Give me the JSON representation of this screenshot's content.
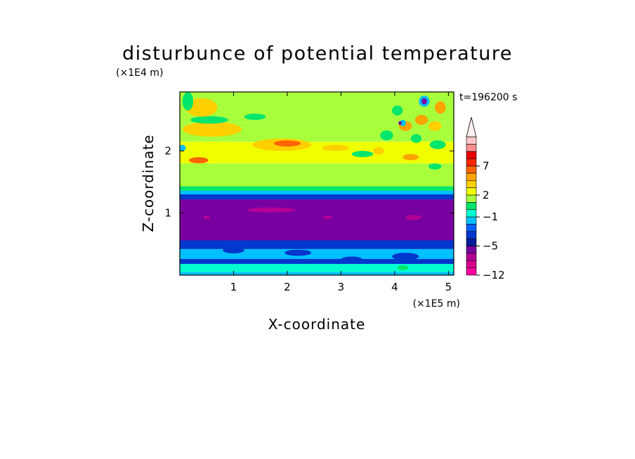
{
  "chart_data": {
    "type": "heatmap",
    "title": "disturbunce of potential temperature",
    "xlabel": "X-coordinate",
    "ylabel": "Z-coordinate",
    "x_unit_label": "(×1E5 m)",
    "y_unit_label": "(×1E4 m)",
    "time_label": "t=196200 s",
    "xlim": [
      0,
      5.1
    ],
    "ylim": [
      0,
      2.95
    ],
    "x_ticks": [
      1,
      2,
      3,
      4,
      5
    ],
    "y_ticks": [
      1,
      2
    ],
    "colorbar": {
      "levels": [
        -12,
        -11,
        -9,
        -7,
        -5,
        -4,
        -3,
        -2,
        -1,
        0,
        1,
        2,
        3,
        4,
        5,
        7,
        8,
        9,
        10
      ],
      "colors": [
        "#ff00a0",
        "#d8008c",
        "#b40096",
        "#7800a0",
        "#001e9a",
        "#0037cc",
        "#0060ff",
        "#00bfff",
        "#00ffd0",
        "#00e56b",
        "#a8ff3c",
        "#f0ff00",
        "#ffd000",
        "#ffa400",
        "#ff6400",
        "#ff2800",
        "#e60000",
        "#ff8f8f",
        "#ffc8c8"
      ],
      "extend_color": "#fff0f0",
      "tick_labels": [
        "7",
        "2",
        "-1",
        "-5",
        "-12"
      ],
      "tick_values": [
        7,
        2,
        -1,
        -5,
        -12
      ]
    },
    "field_bands": [
      {
        "z_from": 0.0,
        "z_to": 0.05,
        "value": -1.5
      },
      {
        "z_from": 0.05,
        "z_to": 0.18,
        "value": -0.6
      },
      {
        "z_from": 0.18,
        "z_to": 0.26,
        "value": -3.5
      },
      {
        "z_from": 0.26,
        "z_to": 0.42,
        "value": -1.4
      },
      {
        "z_from": 0.42,
        "z_to": 0.56,
        "value": -3.2
      },
      {
        "z_from": 0.56,
        "z_to": 1.22,
        "value": -5.5
      },
      {
        "z_from": 1.22,
        "z_to": 1.3,
        "value": -3.5
      },
      {
        "z_from": 1.3,
        "z_to": 1.36,
        "value": -1.5
      },
      {
        "z_from": 1.36,
        "z_to": 1.43,
        "value": 0.3
      },
      {
        "z_from": 1.43,
        "z_to": 1.8,
        "value": 1.6
      },
      {
        "z_from": 1.8,
        "z_to": 2.15,
        "value": 2.5
      },
      {
        "z_from": 2.15,
        "z_to": 2.45,
        "value": 1.7
      },
      {
        "z_from": 2.45,
        "z_to": 2.95,
        "value": 1.5
      }
    ],
    "field_features": [
      {
        "x": 1.7,
        "z": 1.05,
        "rx": 0.45,
        "rz": 0.04,
        "value": -9
      },
      {
        "x": 4.35,
        "z": 0.93,
        "rx": 0.15,
        "rz": 0.04,
        "value": -9
      },
      {
        "x": 2.75,
        "z": 0.93,
        "rx": 0.08,
        "rz": 0.03,
        "value": -9
      },
      {
        "x": 0.5,
        "z": 0.93,
        "rx": 0.06,
        "rz": 0.03,
        "value": -9
      },
      {
        "x": 1.9,
        "z": 2.1,
        "rx": 0.55,
        "rz": 0.1,
        "value": 3.2
      },
      {
        "x": 2.0,
        "z": 2.12,
        "rx": 0.25,
        "rz": 0.05,
        "value": 5.5
      },
      {
        "x": 0.6,
        "z": 2.35,
        "rx": 0.55,
        "rz": 0.12,
        "value": 3.2
      },
      {
        "x": 0.55,
        "z": 2.5,
        "rx": 0.35,
        "rz": 0.06,
        "value": 0.3
      },
      {
        "x": 0.4,
        "z": 2.7,
        "rx": 0.3,
        "rz": 0.15,
        "value": 3.3
      },
      {
        "x": 0.35,
        "z": 1.85,
        "rx": 0.18,
        "rz": 0.05,
        "value": 5.5
      },
      {
        "x": 1.4,
        "z": 2.55,
        "rx": 0.2,
        "rz": 0.05,
        "value": 0.3
      },
      {
        "x": 2.9,
        "z": 2.05,
        "rx": 0.25,
        "rz": 0.05,
        "value": 3.2
      },
      {
        "x": 0.15,
        "z": 2.8,
        "rx": 0.1,
        "rz": 0.15,
        "value": 0.3
      },
      {
        "x": 0.05,
        "z": 2.05,
        "rx": 0.06,
        "rz": 0.05,
        "value": -1.5
      },
      {
        "x": 3.85,
        "z": 2.25,
        "rx": 0.12,
        "rz": 0.08,
        "value": 0.3
      },
      {
        "x": 4.05,
        "z": 2.65,
        "rx": 0.1,
        "rz": 0.08,
        "value": 0.3
      },
      {
        "x": 4.2,
        "z": 2.4,
        "rx": 0.12,
        "rz": 0.08,
        "value": 4.0
      },
      {
        "x": 4.4,
        "z": 2.2,
        "rx": 0.1,
        "rz": 0.07,
        "value": 0.3
      },
      {
        "x": 4.5,
        "z": 2.5,
        "rx": 0.12,
        "rz": 0.08,
        "value": 4.0
      },
      {
        "x": 4.55,
        "z": 2.8,
        "rx": 0.1,
        "rz": 0.09,
        "value": -1.5
      },
      {
        "x": 4.55,
        "z": 2.8,
        "rx": 0.05,
        "rz": 0.05,
        "value": -5.5
      },
      {
        "x": 4.15,
        "z": 2.45,
        "rx": 0.06,
        "rz": 0.05,
        "value": -1.5
      },
      {
        "x": 4.1,
        "z": 2.45,
        "rx": 0.03,
        "rz": 0.03,
        "value": -5.5
      },
      {
        "x": 4.8,
        "z": 2.1,
        "rx": 0.15,
        "rz": 0.07,
        "value": 0.3
      },
      {
        "x": 4.75,
        "z": 2.4,
        "rx": 0.12,
        "rz": 0.08,
        "value": 3.2
      },
      {
        "x": 4.85,
        "z": 2.7,
        "rx": 0.1,
        "rz": 0.1,
        "value": 4.0
      },
      {
        "x": 3.7,
        "z": 2.0,
        "rx": 0.1,
        "rz": 0.06,
        "value": 3.2
      },
      {
        "x": 4.3,
        "z": 1.9,
        "rx": 0.15,
        "rz": 0.05,
        "value": 4.0
      },
      {
        "x": 4.75,
        "z": 1.75,
        "rx": 0.12,
        "rz": 0.05,
        "value": 0.3
      },
      {
        "x": 3.4,
        "z": 1.95,
        "rx": 0.2,
        "rz": 0.05,
        "value": 0.3
      },
      {
        "x": 1.0,
        "z": 0.4,
        "rx": 0.2,
        "rz": 0.05,
        "value": -3.5
      },
      {
        "x": 2.2,
        "z": 0.36,
        "rx": 0.25,
        "rz": 0.05,
        "value": -3.5
      },
      {
        "x": 3.2,
        "z": 0.25,
        "rx": 0.2,
        "rz": 0.05,
        "value": -3.5
      },
      {
        "x": 4.2,
        "z": 0.3,
        "rx": 0.25,
        "rz": 0.06,
        "value": -3.5
      },
      {
        "x": 4.15,
        "z": 0.12,
        "rx": 0.1,
        "rz": 0.04,
        "value": 0.3
      }
    ]
  }
}
